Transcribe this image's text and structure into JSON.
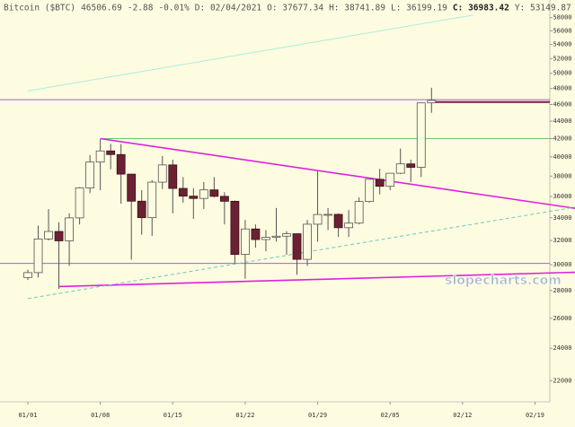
{
  "chart_data": {
    "type": "candlestick",
    "header": [
      "Bitcoin ($BTC)",
      "46506.69",
      "-2.88",
      "-0.01%",
      "D: 02/04/2021",
      "O: 37677.34",
      "H: 38741.89",
      "L: 36199.19",
      "C: 36983.42",
      "Y: 53149.87"
    ],
    "watermark": "slopecharts.com",
    "log_scale": true,
    "ylim": [
      20800,
      60800
    ],
    "yticks": [
      22000,
      24000,
      26000,
      28000,
      30000,
      32000,
      34000,
      36000,
      38000,
      40000,
      42000,
      44000,
      46000,
      48000,
      50000,
      52000,
      54000,
      56000,
      58000
    ],
    "xticks": [
      "01/01",
      "01/08",
      "01/15",
      "01/22",
      "01/29",
      "02/05",
      "02/12",
      "02/19"
    ],
    "up_color": "#fdfbe0",
    "down_color": "#6b2133",
    "wick_color": "#555555",
    "x": [
      "01/01",
      "01/02",
      "01/03",
      "01/04",
      "01/05",
      "01/06",
      "01/07",
      "01/08",
      "01/09",
      "01/10",
      "01/11",
      "01/12",
      "01/13",
      "01/14",
      "01/15",
      "01/16",
      "01/17",
      "01/18",
      "01/19",
      "01/20",
      "01/21",
      "01/22",
      "01/23",
      "01/24",
      "01/25",
      "01/26",
      "01/27",
      "01/28",
      "01/29",
      "01/30",
      "01/31",
      "02/01",
      "02/02",
      "02/03",
      "02/04",
      "02/05",
      "02/06",
      "02/07",
      "02/08",
      "02/09"
    ],
    "open": [
      28990,
      29370,
      32130,
      32780,
      31970,
      33990,
      36820,
      39450,
      40640,
      40250,
      38200,
      35540,
      34010,
      37390,
      39150,
      36770,
      36020,
      35800,
      36630,
      36000,
      35530,
      30830,
      33000,
      32080,
      32270,
      32370,
      32580,
      30430,
      33420,
      34300,
      34310,
      33110,
      33520,
      35510,
      37677.34,
      36980,
      38290,
      39260,
      38900,
      46200
    ],
    "high": [
      29600,
      33300,
      34800,
      33600,
      34400,
      36900,
      40200,
      41950,
      41400,
      41400,
      38200,
      36600,
      37600,
      40100,
      39700,
      37900,
      36800,
      37400,
      37900,
      36400,
      35600,
      33800,
      33400,
      32900,
      34900,
      32800,
      32600,
      33800,
      38500,
      34900,
      34400,
      34700,
      35900,
      37600,
      38741.89,
      38300,
      40900,
      39700,
      46200,
      48100
    ],
    "low": [
      28800,
      29000,
      32000,
      28130,
      29900,
      33400,
      36300,
      36600,
      38700,
      35300,
      30400,
      32500,
      32400,
      36700,
      34400,
      35400,
      33900,
      34800,
      35900,
      33400,
      30100,
      28900,
      31400,
      31100,
      31900,
      30800,
      29200,
      29900,
      31900,
      32900,
      32300,
      32300,
      33400,
      35400,
      36199.19,
      36600,
      38200,
      37400,
      37900,
      45000
    ],
    "close": [
      29370,
      32130,
      32780,
      31970,
      33990,
      36820,
      39450,
      40640,
      40250,
      38200,
      35540,
      34010,
      37390,
      39150,
      36770,
      36020,
      35800,
      36630,
      36000,
      35530,
      30830,
      33000,
      32080,
      32270,
      32370,
      32580,
      30430,
      33420,
      34300,
      34310,
      33110,
      33520,
      35510,
      37680,
      36983.42,
      38290,
      39260,
      38900,
      46200,
      46506.69
    ],
    "hlines": [
      {
        "value": 46600,
        "color": "#9966dd"
      },
      {
        "value": 30100,
        "color": "#9966dd"
      },
      {
        "value": 42000,
        "color": "#66cc66",
        "from": "01/08"
      },
      {
        "value": 46300,
        "color": "#7a2030",
        "from": "02/09"
      }
    ],
    "trendlines": [
      {
        "from": [
          "01/08",
          42000
        ],
        "to": [
          "02/23",
          34850
        ],
        "color": "#dd22dd"
      },
      {
        "from": [
          "01/04",
          28300
        ],
        "to": [
          "02/23",
          29400
        ],
        "color": "#dd22dd"
      },
      {
        "from": [
          "01/01",
          47700
        ],
        "to": [
          "02/13",
          58400
        ],
        "color": "#aaeedd"
      },
      {
        "from": [
          "01/01",
          27400
        ],
        "to": [
          "02/23",
          35000
        ],
        "color": "#66ccbb",
        "dashed": true
      }
    ]
  }
}
